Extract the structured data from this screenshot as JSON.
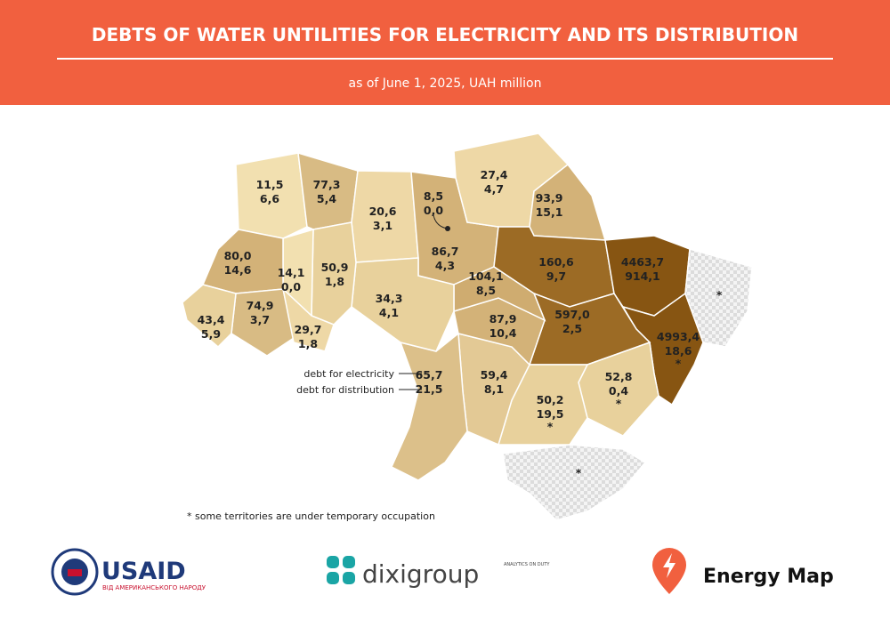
{
  "header": {
    "title": "DEBTS OF WATER UNTILITIES FOR ELECTRICITY AND ITS DISTRIBUTION",
    "subtitle": "as of June 1, 2025, UAH million"
  },
  "legend": {
    "electricity": "debt for electricity",
    "distribution": "debt for distribution"
  },
  "regions": [
    {
      "electricity": "11,5",
      "distribution": "6,6",
      "color": "#f2e0b0"
    },
    {
      "electricity": "77,3",
      "distribution": "5,4",
      "color": "#d8bb84"
    },
    {
      "electricity": "20,6",
      "distribution": "3,1",
      "color": "#eed8a6"
    },
    {
      "electricity": "8,5",
      "distribution": "0,0",
      "color": "#d8bb84"
    },
    {
      "electricity": "86,7",
      "distribution": "4,3",
      "color": "#d3b278"
    },
    {
      "electricity": "27,4",
      "distribution": "4,7",
      "color": "#eed8a6"
    },
    {
      "electricity": "93,9",
      "distribution": "15,1",
      "color": "#d3b278"
    },
    {
      "electricity": "160,6",
      "distribution": "9,7",
      "color": "#9c6b25"
    },
    {
      "electricity": "4463,7",
      "distribution": "914,1",
      "color": "#875512"
    },
    {
      "electricity": "4993,4",
      "distribution": "18,6",
      "mark": "*",
      "color": "#875512"
    },
    {
      "electricity": "597,0",
      "distribution": "2,5",
      "color": "#9c6b25"
    },
    {
      "electricity": "52,8",
      "distribution": "0,4",
      "mark": "*",
      "color": "#e8d19c"
    },
    {
      "electricity": "50,2",
      "distribution": "19,5",
      "mark": "*",
      "color": "#e8d19c"
    },
    {
      "electricity": "59,4",
      "distribution": "8,1",
      "color": "#e3c995"
    },
    {
      "electricity": "65,7",
      "distribution": "21,5",
      "color": "#dcc08a"
    },
    {
      "electricity": "87,9",
      "distribution": "10,4",
      "color": "#d3b278"
    },
    {
      "electricity": "104,1",
      "distribution": "8,5",
      "color": "#cfac70"
    },
    {
      "electricity": "34,3",
      "distribution": "4,1",
      "color": "#e8d19c"
    },
    {
      "electricity": "50,9",
      "distribution": "1,8",
      "color": "#e8d19c"
    },
    {
      "electricity": "14,1",
      "distribution": "0,0",
      "color": "#f2e0b0"
    },
    {
      "electricity": "80,0",
      "distribution": "14,6",
      "color": "#d3b278"
    },
    {
      "electricity": "74,9",
      "distribution": "3,7",
      "color": "#d8bb84"
    },
    {
      "electricity": "43,4",
      "distribution": "5,9",
      "color": "#e8d19c"
    },
    {
      "electricity": "29,7",
      "distribution": "1,8",
      "color": "#eed8a6"
    }
  ],
  "occupied": [
    {
      "mark": "*"
    },
    {
      "mark": "*"
    }
  ],
  "footnote": "* some territories are under temporary occupation",
  "logos": {
    "usaid": "USAID",
    "usaid_sub": "ВІД АМЕРИКАНСЬКОГО НАРОДУ",
    "dixi": "dixigroup",
    "dixi_sub": "ANALYTICS ON DUTY",
    "energy": "Energy Map"
  }
}
